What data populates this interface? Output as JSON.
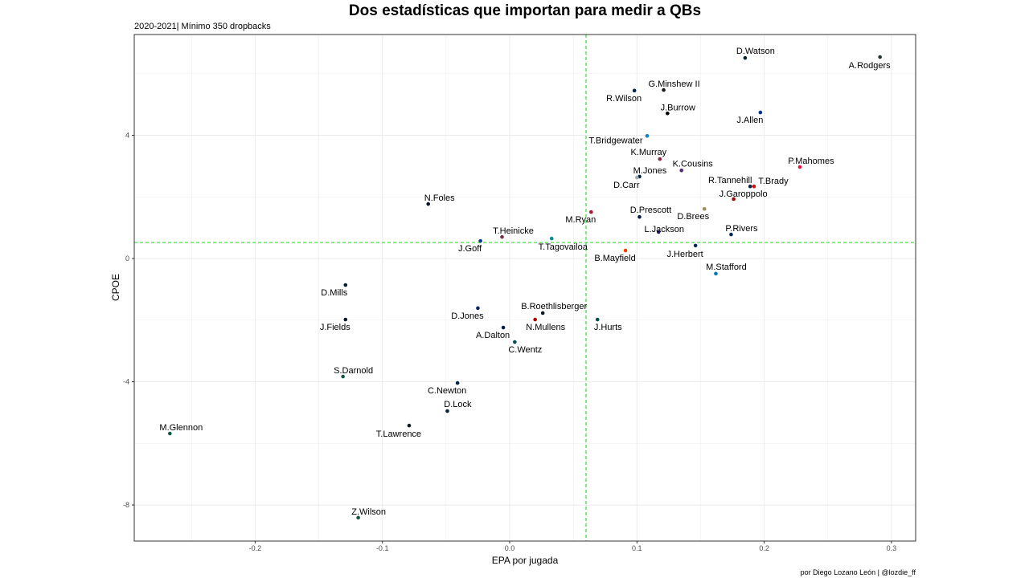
{
  "chart_data": {
    "type": "scatter",
    "title": "Dos estadísticas que importan para medir a QBs",
    "subtitle": "2020-2021| Mínimo 350 dropbacks",
    "xlabel": "EPA por jugada",
    "ylabel": "CPOE",
    "caption": "por Diego Lozano León | @lozdie_ff",
    "xlim": [
      -0.295,
      0.319
    ],
    "ylim": [
      -9.17,
      7.27
    ],
    "xticks": [
      -0.2,
      -0.1,
      0.0,
      0.1,
      0.2,
      0.3
    ],
    "xtick_labels": [
      "-0.2",
      "-0.1",
      "0.0",
      "0.1",
      "0.2",
      "0.3"
    ],
    "yticks": [
      -8,
      -4,
      0,
      4
    ],
    "ytick_labels": [
      "-8",
      "-4",
      "0",
      "4"
    ],
    "grid": true,
    "reference_lines": {
      "x_mean": 0.06,
      "y_mean": 0.52,
      "color": "#33dd33",
      "style": "dashed"
    },
    "points": [
      {
        "label": "D.Watson",
        "x": 0.185,
        "y": 6.51,
        "color": "#03202f"
      },
      {
        "label": "A.Rodgers",
        "x": 0.291,
        "y": 6.54,
        "color": "#203731"
      },
      {
        "label": "G.Minshew II",
        "x": 0.121,
        "y": 5.47,
        "color": "#101820"
      },
      {
        "label": "R.Wilson",
        "x": 0.098,
        "y": 5.45,
        "color": "#002244"
      },
      {
        "label": "J.Burrow",
        "x": 0.124,
        "y": 4.71,
        "color": "#000000"
      },
      {
        "label": "J.Allen",
        "x": 0.197,
        "y": 4.74,
        "color": "#00338d"
      },
      {
        "label": "T.Bridgewater",
        "x": 0.108,
        "y": 3.98,
        "color": "#0085ca"
      },
      {
        "label": "K.Murray",
        "x": 0.118,
        "y": 3.23,
        "color": "#97233f"
      },
      {
        "label": "K.Cousins",
        "x": 0.135,
        "y": 2.86,
        "color": "#4f2683"
      },
      {
        "label": "P.Mahomes",
        "x": 0.228,
        "y": 2.97,
        "color": "#e31837"
      },
      {
        "label": "M.Jones",
        "x": 0.102,
        "y": 2.66,
        "color": "#002244"
      },
      {
        "label": "D.Carr",
        "x": 0.1,
        "y": 2.63,
        "color": "#a5acaf"
      },
      {
        "label": "R.Tannehill",
        "x": 0.189,
        "y": 2.34,
        "color": "#0c2340"
      },
      {
        "label": "T.Brady",
        "x": 0.192,
        "y": 2.34,
        "color": "#d50a0a"
      },
      {
        "label": "J.Garoppolo",
        "x": 0.176,
        "y": 1.93,
        "color": "#aa0000"
      },
      {
        "label": "N.Foles",
        "x": -0.064,
        "y": 1.77,
        "color": "#0b162a"
      },
      {
        "label": "M.Ryan",
        "x": 0.064,
        "y": 1.51,
        "color": "#a71930"
      },
      {
        "label": "D.Prescott",
        "x": 0.102,
        "y": 1.35,
        "color": "#041e42"
      },
      {
        "label": "D.Brees",
        "x": 0.153,
        "y": 1.61,
        "color": "#9f8958"
      },
      {
        "label": "L.Jackson",
        "x": 0.117,
        "y": 0.86,
        "color": "#241773"
      },
      {
        "label": "P.Rivers",
        "x": 0.174,
        "y": 0.78,
        "color": "#002c5f"
      },
      {
        "label": "T.Heinicke",
        "x": -0.006,
        "y": 0.7,
        "color": "#773141"
      },
      {
        "label": "J.Goff",
        "x": -0.023,
        "y": 0.57,
        "color": "#003594"
      },
      {
        "label": "T.Tagovailoa",
        "x": 0.033,
        "y": 0.65,
        "color": "#008e97"
      },
      {
        "label": "J.Herbert",
        "x": 0.146,
        "y": 0.42,
        "color": "#002a5e"
      },
      {
        "label": "B.Mayfield",
        "x": 0.091,
        "y": 0.26,
        "color": "#ff3c00"
      },
      {
        "label": "M.Stafford",
        "x": 0.162,
        "y": -0.49,
        "color": "#0076b6"
      },
      {
        "label": "D.Mills",
        "x": -0.129,
        "y": -0.86,
        "color": "#03202f"
      },
      {
        "label": "D.Jones",
        "x": -0.025,
        "y": -1.61,
        "color": "#0b2265"
      },
      {
        "label": "B.Roethlisberger",
        "x": 0.026,
        "y": -1.77,
        "color": "#101820"
      },
      {
        "label": "N.Mullens",
        "x": 0.02,
        "y": -1.98,
        "color": "#aa0000"
      },
      {
        "label": "J.Hurts",
        "x": 0.069,
        "y": -1.98,
        "color": "#004c54"
      },
      {
        "label": "J.Fields",
        "x": -0.129,
        "y": -1.98,
        "color": "#0b162a"
      },
      {
        "label": "A.Dalton",
        "x": -0.005,
        "y": -2.24,
        "color": "#041e42"
      },
      {
        "label": "C.Wentz",
        "x": 0.004,
        "y": -2.71,
        "color": "#004c54"
      },
      {
        "label": "S.Darnold",
        "x": -0.131,
        "y": -3.83,
        "color": "#125740"
      },
      {
        "label": "C.Newton",
        "x": -0.041,
        "y": -4.04,
        "color": "#002244"
      },
      {
        "label": "D.Lock",
        "x": -0.049,
        "y": -4.95,
        "color": "#002244"
      },
      {
        "label": "T.Lawrence",
        "x": -0.079,
        "y": -5.42,
        "color": "#101820"
      },
      {
        "label": "M.Glennon",
        "x": -0.267,
        "y": -5.68,
        "color": "#125740"
      },
      {
        "label": "Z.Wilson",
        "x": -0.119,
        "y": -8.41,
        "color": "#125740"
      }
    ]
  }
}
